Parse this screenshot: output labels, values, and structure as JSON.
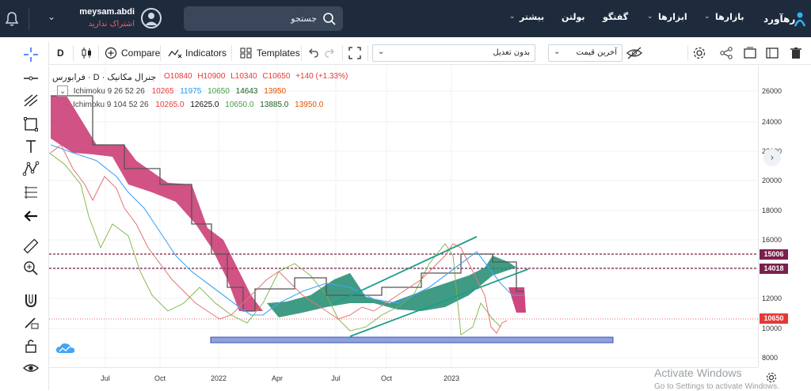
{
  "nav": {
    "username": "meysam.abdi",
    "subscription_status": "اشتراک ندارید",
    "search_placeholder": "جستجو",
    "items": [
      {
        "label": "بازارها"
      },
      {
        "label": "ابزارها"
      },
      {
        "label": "گفتگو"
      },
      {
        "label": "بولتن"
      },
      {
        "label": "بیشتر"
      }
    ],
    "logo_text": "رهآورد"
  },
  "toolbar": {
    "interval": "D",
    "compare_label": "Compare",
    "indicators_label": "Indicators",
    "templates_label": "Templates",
    "adjustment_select": "بدون تعدیل",
    "price_select": "آخرین قیمت"
  },
  "legend": {
    "symbol": "فرابورس · D · جنرال مکانیک",
    "ohlc": [
      {
        "label": "O",
        "value": "10840"
      },
      {
        "label": "H",
        "value": "10900"
      },
      {
        "label": "L",
        "value": "10340"
      },
      {
        "label": "C",
        "value": "10650"
      }
    ],
    "change": "+140 (+1.33%)",
    "ichimoku1": {
      "name": "Ichimoku 9 26 52 26",
      "values": [
        "10265",
        "11975",
        "10650",
        "14643",
        "13950"
      ]
    },
    "ichimoku2": {
      "name": "Ichimoku 9 104 52 26",
      "values": [
        "10265.0",
        "12625.0",
        "10650.0",
        "13885.0",
        "13950.0"
      ]
    },
    "ichimoku_colors": [
      "#e53935",
      "#2196f3",
      "#43a047",
      "#1b5e20",
      "#e65100"
    ]
  },
  "yaxis": {
    "ticks": [
      "26000",
      "24000",
      "22000",
      "20000",
      "18000",
      "16000",
      "14000",
      "12000",
      "10000",
      "8000"
    ],
    "badges": [
      {
        "value": "15006",
        "color": "#7b1f4e"
      },
      {
        "value": "14018",
        "color": "#7b1f4e"
      },
      {
        "value": "10650",
        "color": "#e53935"
      }
    ]
  },
  "xaxis": {
    "ticks": [
      "Jul",
      "Oct",
      "2022",
      "Apr",
      "Jul",
      "Oct",
      "2023"
    ]
  },
  "watermark": {
    "line1": "Activate Windows",
    "line2": "Go to Settings to activate Windows."
  },
  "colors": {
    "nav_bg": "#1e2b3d",
    "cloud_bull": "#1f8a70",
    "cloud_bear": "#c2185b",
    "accent_red": "#e53935"
  }
}
